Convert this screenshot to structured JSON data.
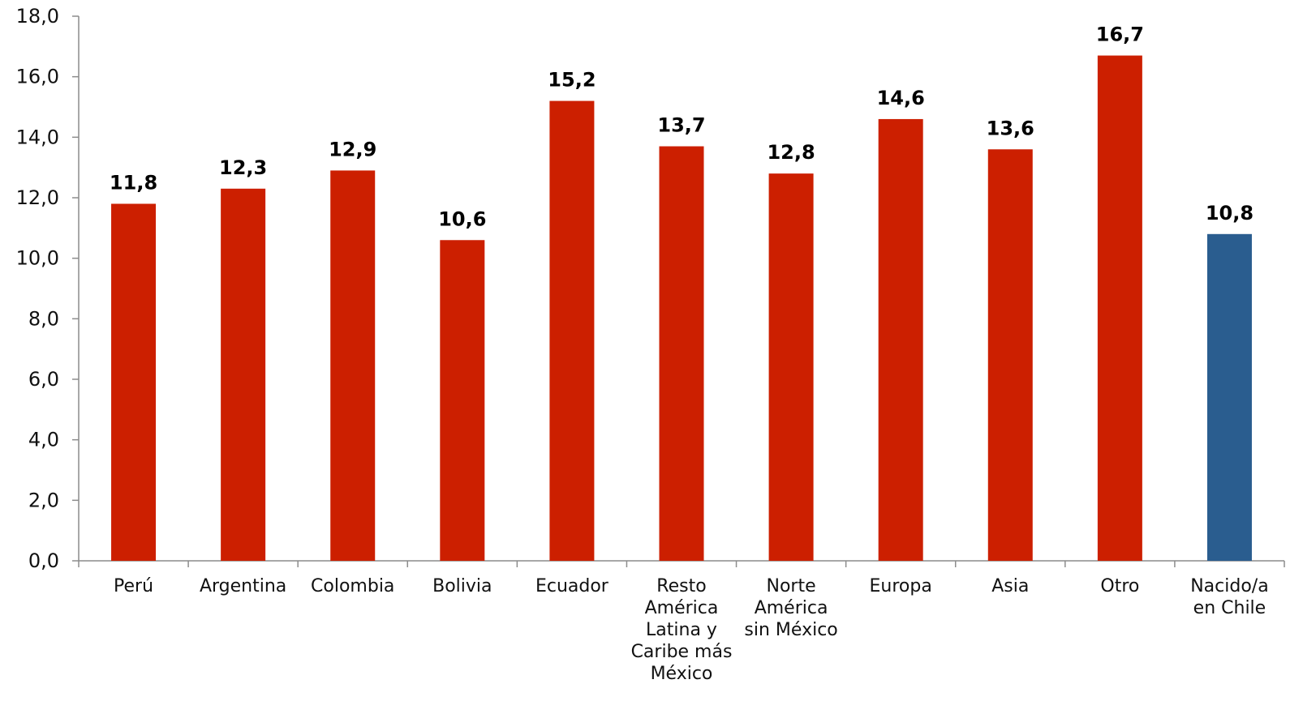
{
  "chart_data": {
    "type": "bar",
    "title": "",
    "xlabel": "",
    "ylabel": "",
    "ylim": [
      0,
      18
    ],
    "ytick_step": 2,
    "ytick_labels": [
      "0,0",
      "2,0",
      "4,0",
      "6,0",
      "8,0",
      "10,0",
      "12,0",
      "14,0",
      "16,0",
      "18,0"
    ],
    "grid": false,
    "legend": "none",
    "categories": [
      "Perú",
      "Argentina",
      "Colombia",
      "Bolivia",
      "Ecuador",
      "Resto América Latina y Caribe más México",
      "Norte América sin México",
      "Europa",
      "Asia",
      "Otro",
      "Nacido/a en Chile"
    ],
    "category_label_lines": [
      [
        "Perú"
      ],
      [
        "Argentina"
      ],
      [
        "Colombia"
      ],
      [
        "Bolivia"
      ],
      [
        "Ecuador"
      ],
      [
        "Resto",
        "América",
        "Latina y",
        "Caribe más",
        "México"
      ],
      [
        "Norte",
        "América",
        "sin México"
      ],
      [
        "Europa"
      ],
      [
        "Asia"
      ],
      [
        "Otro"
      ],
      [
        "Nacido/a",
        "en Chile"
      ]
    ],
    "values": [
      11.8,
      12.3,
      12.9,
      10.6,
      15.2,
      13.7,
      12.8,
      14.6,
      13.6,
      16.7,
      10.8
    ],
    "value_labels": [
      "11,8",
      "12,3",
      "12,9",
      "10,6",
      "15,2",
      "13,7",
      "12,8",
      "14,6",
      "13,6",
      "16,7",
      "10,8"
    ],
    "colors": [
      "#cc1f00",
      "#cc1f00",
      "#cc1f00",
      "#cc1f00",
      "#cc1f00",
      "#cc1f00",
      "#cc1f00",
      "#cc1f00",
      "#cc1f00",
      "#cc1f00",
      "#2a5d8f"
    ]
  }
}
